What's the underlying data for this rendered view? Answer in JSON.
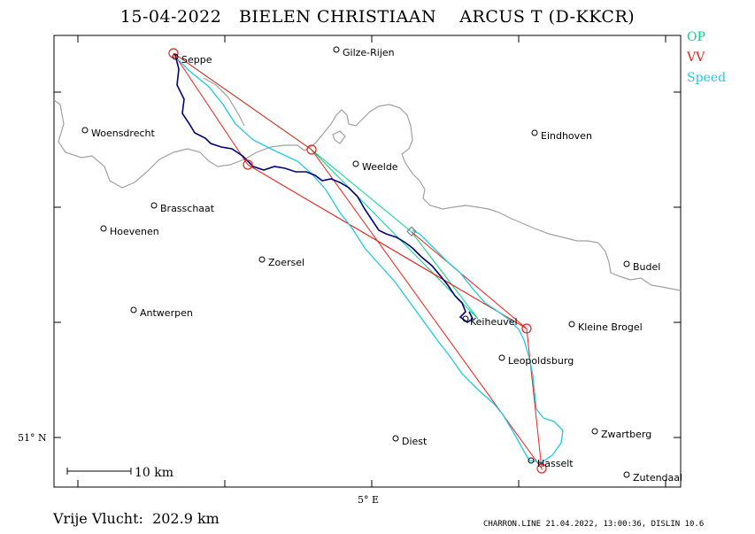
{
  "header": {
    "title": "15-04-2022   BIELEN CHRISTIAAN    ARCUS T (D-KKCR)"
  },
  "legend": {
    "items": [
      {
        "label": "OP",
        "color": "#00d68a"
      },
      {
        "label": "VV",
        "color": "#e8231c"
      },
      {
        "label": "Speed",
        "color": "#1ec8e6"
      }
    ]
  },
  "axes": {
    "lat_label": "51° N",
    "lon_label": "5° E"
  },
  "scale_bar": {
    "label": "10 km"
  },
  "places": [
    {
      "name": "Seppe"
    },
    {
      "name": "Gilze-Rijen"
    },
    {
      "name": "Woensdrecht"
    },
    {
      "name": "Eindhoven"
    },
    {
      "name": "Weelde"
    },
    {
      "name": "Brasschaat"
    },
    {
      "name": "Hoevenen"
    },
    {
      "name": "Zoersel"
    },
    {
      "name": "Budel"
    },
    {
      "name": "Antwerpen"
    },
    {
      "name": "Keiheuvel"
    },
    {
      "name": "Kleine Brogel"
    },
    {
      "name": "Leopoldsburg"
    },
    {
      "name": "Diest"
    },
    {
      "name": "Zwartberg"
    },
    {
      "name": "Hasselt"
    },
    {
      "name": "Zutendaal"
    }
  ],
  "footer": {
    "distance": "Vrije Vlucht:  202.9 km",
    "stamp": "CHARRON.LINE 21.04.2022, 13:00:36, DISLIN 10.6"
  },
  "colors": {
    "border": "#a0a0a0",
    "track": "#000080",
    "speed": "#1ec8e6",
    "op": "#00d68a",
    "vv": "#e8231c"
  }
}
